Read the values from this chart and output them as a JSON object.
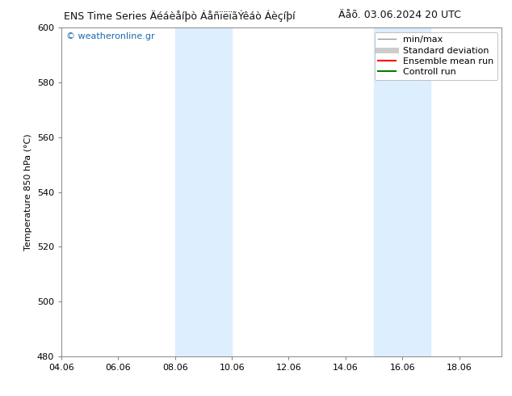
{
  "title_left": "ENS Time Series Äéáèåíþò ÁåñïëïãÝêáò Áèçíþí",
  "title_right": "Äåõ. 03.06.2024 20 UTC",
  "ylabel": "Temperature 850 hPa (°C)",
  "ylim": [
    480,
    600
  ],
  "yticks": [
    480,
    500,
    520,
    540,
    560,
    580,
    600
  ],
  "xlim_start": 4.0,
  "xlim_end": 19.5,
  "xtick_values": [
    4.0,
    6.0,
    8.0,
    10.0,
    12.0,
    14.0,
    16.0,
    18.0
  ],
  "xtick_labels": [
    "04.06",
    "06.06",
    "08.06",
    "10.06",
    "12.06",
    "14.06",
    "16.06",
    "18.06"
  ],
  "shaded_bands": [
    {
      "x_start": 8.0,
      "x_end": 10.0
    },
    {
      "x_start": 15.0,
      "x_end": 17.0
    }
  ],
  "shade_color": "#ddeeff",
  "bg_color": "#ffffff",
  "plot_bg_color": "#ffffff",
  "copyright_text": "© weatheronline.gr",
  "copyright_color": "#1a6aad",
  "legend_items": [
    {
      "label": "min/max",
      "color": "#999999",
      "linewidth": 1.0,
      "linestyle": "-"
    },
    {
      "label": "Standard deviation",
      "color": "#cccccc",
      "linewidth": 5,
      "linestyle": "-"
    },
    {
      "label": "Ensemble mean run",
      "color": "#ff0000",
      "linewidth": 1.5,
      "linestyle": "-"
    },
    {
      "label": "Controll run",
      "color": "#008000",
      "linewidth": 1.5,
      "linestyle": "-"
    }
  ],
  "grid_color": "#dddddd",
  "fontsize_title": 9,
  "fontsize_axis": 8,
  "fontsize_tick": 8,
  "fontsize_legend": 8,
  "fontsize_copyright": 8
}
